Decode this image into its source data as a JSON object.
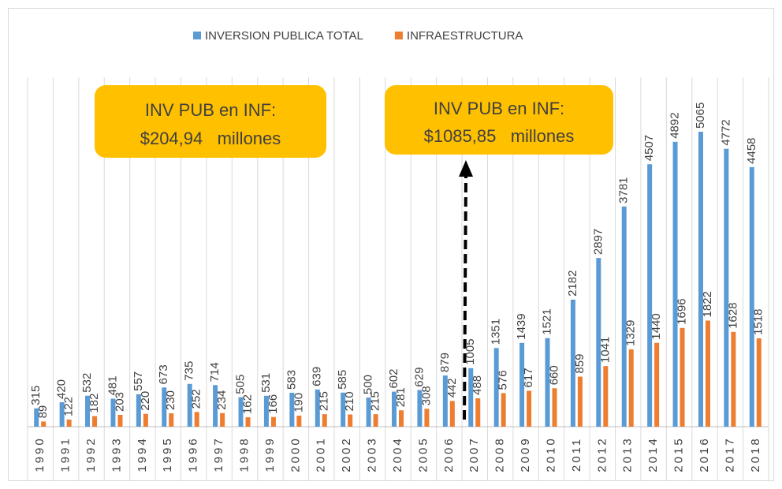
{
  "chart_data": {
    "type": "bar",
    "categories": [
      "1990",
      "1991",
      "1992",
      "1993",
      "1994",
      "1995",
      "1996",
      "1997",
      "1998",
      "1999",
      "2000",
      "2001",
      "2002",
      "2003",
      "2004",
      "2005",
      "2006",
      "2007",
      "2008",
      "2009",
      "2010",
      "2011",
      "2012",
      "2013",
      "2014",
      "2015",
      "2016",
      "2017",
      "2018"
    ],
    "series": [
      {
        "name": "INVERSION PUBLICA TOTAL",
        "color": "#5b9bd5",
        "values": [
          315,
          420,
          532,
          481,
          557,
          673,
          735,
          714,
          505,
          531,
          583,
          639,
          585,
          500,
          602,
          629,
          879,
          1005,
          1351,
          1439,
          1521,
          2182,
          2897,
          3781,
          4507,
          4892,
          5065,
          4772,
          4458
        ]
      },
      {
        "name": "INFRAESTRUCTURA",
        "color": "#ed7d31",
        "values": [
          89,
          122,
          182,
          203,
          220,
          230,
          252,
          234,
          162,
          166,
          190,
          215,
          210,
          215,
          281,
          308,
          442,
          488,
          576,
          617,
          660,
          859,
          1041,
          1329,
          1440,
          1696,
          1822,
          1628,
          1518
        ]
      }
    ],
    "ylim": [
      0,
      6000
    ],
    "legend": "top",
    "annotations": [
      {
        "lines": [
          "INV PUB en INF:",
          "$204,94   millones"
        ]
      },
      {
        "lines": [
          "INV PUB en INF:",
          "$1085,85   millones"
        ]
      }
    ]
  }
}
